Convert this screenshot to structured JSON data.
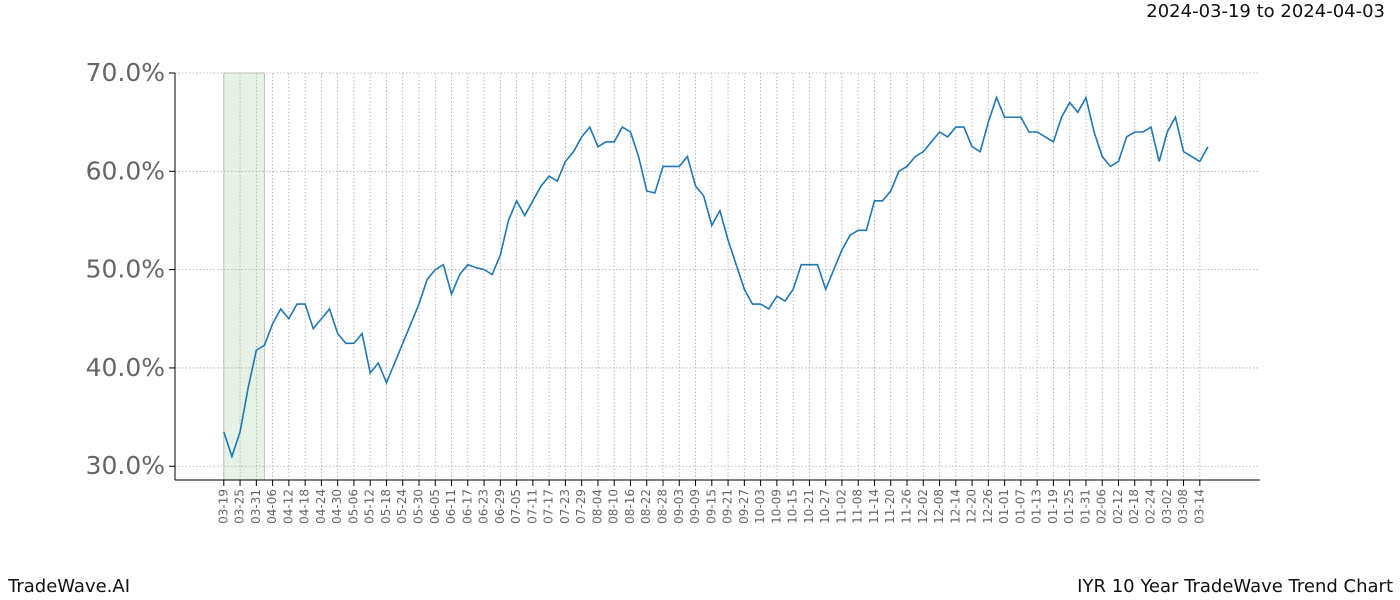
{
  "chart_data": {
    "type": "line",
    "subtitle": "2024-03-19 to 2024-04-03",
    "footer_left": "TradeWave.AI",
    "footer_right": "IYR 10 Year TradeWave Trend Chart",
    "categories": [
      "03-19",
      null,
      "03-25",
      null,
      "03-31",
      null,
      "04-06",
      null,
      "04-12",
      null,
      "04-18",
      null,
      "04-24",
      null,
      "04-30",
      null,
      "05-06",
      null,
      "05-12",
      null,
      "05-18",
      null,
      "05-24",
      null,
      "05-30",
      null,
      "06-05",
      null,
      "06-11",
      null,
      "06-17",
      null,
      "06-23",
      null,
      "06-29",
      null,
      "07-05",
      null,
      "07-11",
      null,
      "07-17",
      null,
      "07-23",
      null,
      "07-29",
      null,
      "08-04",
      null,
      "08-10",
      null,
      "08-16",
      null,
      "08-22",
      null,
      "08-28",
      null,
      "09-03",
      null,
      "09-09",
      null,
      "09-15",
      null,
      "09-21",
      null,
      "09-27",
      null,
      "10-03",
      null,
      "10-09",
      null,
      "10-15",
      null,
      "10-21",
      null,
      "10-27",
      null,
      "11-02",
      null,
      "11-08",
      null,
      "11-14",
      null,
      "11-20",
      null,
      "11-26",
      null,
      "12-02",
      null,
      "12-08",
      null,
      "12-14",
      null,
      "12-20",
      null,
      "12-26",
      null,
      "01-01",
      null,
      "01-07",
      null,
      "01-13",
      null,
      "01-19",
      null,
      "01-25",
      null,
      "01-31",
      null,
      "02-06",
      null,
      "02-12",
      null,
      "02-18",
      null,
      "02-24",
      null,
      "03-02",
      null,
      "03-08",
      null,
      "03-14",
      null
    ],
    "series": [
      {
        "color": "#1f77b4",
        "values": [
          33.5,
          31,
          33.5,
          38,
          41.8,
          42.3,
          44.5,
          46,
          45,
          46.5,
          46.5,
          44,
          45,
          46,
          43.5,
          42.5,
          42.5,
          43.5,
          39.5,
          40.5,
          38.5,
          40.5,
          42.5,
          44.5,
          46.5,
          49,
          50,
          50.5,
          47.5,
          49.5,
          50.5,
          50.2,
          50,
          49.5,
          51.5,
          55,
          57,
          55.5,
          57,
          58.5,
          59.5,
          59,
          61,
          62,
          63.5,
          64.5,
          62.5,
          63,
          63,
          64.5,
          64,
          61.5,
          58,
          57.8,
          60.5,
          60.5,
          60.5,
          61.5,
          58.5,
          57.5,
          54.5,
          56,
          53,
          50.5,
          48,
          46.5,
          46.5,
          46,
          47.3,
          46.8,
          48,
          50.5,
          50.5,
          50.5,
          48,
          50,
          52,
          53.5,
          54,
          54,
          57,
          57,
          58,
          60,
          60.5,
          61.5,
          62,
          63,
          64,
          63.5,
          64.5,
          64.5,
          62.5,
          62,
          65,
          67.5,
          65.5,
          65.5,
          65.5,
          64,
          64,
          63.5,
          63,
          65.5,
          67,
          66,
          67.5,
          64,
          61.5,
          60.5,
          61,
          63.5,
          64,
          64,
          64.5,
          61,
          64,
          65.5,
          62,
          61.5,
          61,
          62.5
        ]
      }
    ],
    "highlight": {
      "from": 0,
      "to": 5,
      "color": "#e6f2e6"
    },
    "xlim": [
      -6,
      127.4
    ],
    "ylim": [
      28.6,
      70
    ],
    "yticks": [
      {
        "value": 30,
        "label": "30.0%"
      },
      {
        "value": 40,
        "label": "40.0%"
      },
      {
        "value": 50,
        "label": "50.0%"
      },
      {
        "value": 60,
        "label": "60.0%"
      },
      {
        "value": 70,
        "label": "70.0%"
      }
    ],
    "grid": true
  }
}
